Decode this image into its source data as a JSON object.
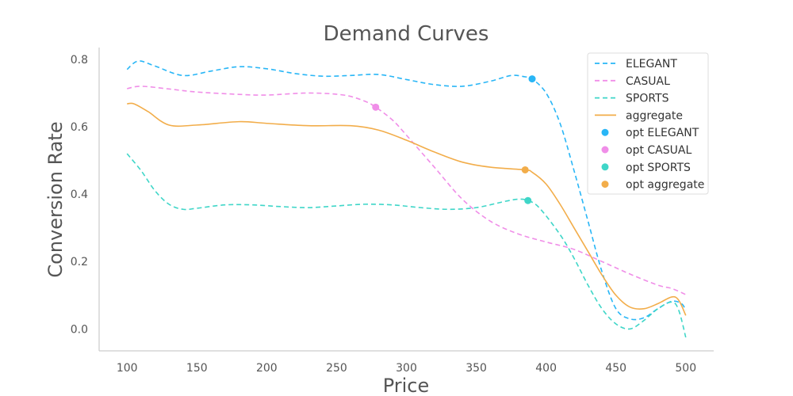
{
  "chart_data": {
    "type": "line",
    "title": "Demand Curves",
    "xlabel": "Price",
    "ylabel": "Conversion Rate",
    "xlim": [
      80,
      520
    ],
    "ylim": [
      -0.065,
      0.835
    ],
    "xticks": [
      100,
      150,
      200,
      250,
      300,
      350,
      400,
      450,
      500
    ],
    "yticks": [
      0.0,
      0.2,
      0.4,
      0.6,
      0.8
    ],
    "ytick_labels": [
      "0.0",
      "0.2",
      "0.4",
      "0.6",
      "0.8"
    ],
    "grid": false,
    "legend_position": "top-right",
    "series": [
      {
        "name": "ELEGANT",
        "color": "#29b6f6",
        "dash": true,
        "x": [
          100,
          108,
          120,
          140,
          160,
          180,
          200,
          220,
          240,
          260,
          280,
          300,
          320,
          340,
          360,
          375,
          385,
          390,
          400,
          410,
          420,
          430,
          440,
          450,
          460,
          470,
          480,
          490,
          497,
          500
        ],
        "y": [
          0.77,
          0.795,
          0.78,
          0.752,
          0.765,
          0.778,
          0.772,
          0.758,
          0.75,
          0.752,
          0.755,
          0.74,
          0.725,
          0.72,
          0.735,
          0.752,
          0.748,
          0.742,
          0.7,
          0.61,
          0.47,
          0.32,
          0.17,
          0.06,
          0.03,
          0.033,
          0.06,
          0.082,
          0.075,
          0.055
        ]
      },
      {
        "name": "CASUAL",
        "color": "#f08ee8",
        "dash": true,
        "x": [
          100,
          110,
          130,
          150,
          180,
          200,
          230,
          255,
          270,
          278,
          290,
          300,
          320,
          340,
          360,
          380,
          400,
          420,
          440,
          460,
          480,
          490,
          500
        ],
        "y": [
          0.713,
          0.72,
          0.712,
          0.703,
          0.696,
          0.694,
          0.7,
          0.694,
          0.676,
          0.658,
          0.62,
          0.575,
          0.48,
          0.385,
          0.32,
          0.282,
          0.258,
          0.236,
          0.2,
          0.163,
          0.13,
          0.12,
          0.102
        ]
      },
      {
        "name": "SPORTS",
        "color": "#3fd6c8",
        "dash": true,
        "x": [
          100,
          110,
          120,
          130,
          140,
          150,
          170,
          190,
          210,
          230,
          250,
          270,
          290,
          310,
          330,
          350,
          370,
          380,
          387,
          395,
          410,
          420,
          430,
          440,
          450,
          460,
          470,
          480,
          490,
          495,
          500
        ],
        "y": [
          0.52,
          0.47,
          0.41,
          0.37,
          0.355,
          0.358,
          0.368,
          0.368,
          0.363,
          0.36,
          0.365,
          0.37,
          0.368,
          0.36,
          0.355,
          0.36,
          0.378,
          0.385,
          0.381,
          0.36,
          0.28,
          0.21,
          0.13,
          0.06,
          0.015,
          0.0,
          0.025,
          0.06,
          0.08,
          0.055,
          -0.025
        ]
      },
      {
        "name": "aggregate",
        "color": "#f2ad4a",
        "dash": false,
        "x": [
          100,
          105,
          115,
          130,
          150,
          180,
          200,
          230,
          260,
          280,
          300,
          320,
          340,
          360,
          385,
          390,
          400,
          410,
          420,
          430,
          440,
          450,
          460,
          470,
          480,
          490,
          495,
          500
        ],
        "y": [
          0.668,
          0.668,
          0.645,
          0.605,
          0.605,
          0.615,
          0.61,
          0.603,
          0.603,
          0.59,
          0.56,
          0.525,
          0.495,
          0.48,
          0.472,
          0.465,
          0.43,
          0.37,
          0.3,
          0.23,
          0.16,
          0.1,
          0.065,
          0.06,
          0.075,
          0.095,
          0.085,
          0.04
        ]
      }
    ],
    "optima": [
      {
        "name": "opt ELEGANT",
        "color": "#29b6f6",
        "x": 390,
        "y": 0.742
      },
      {
        "name": "opt CASUAL",
        "color": "#f08ee8",
        "x": 278,
        "y": 0.658
      },
      {
        "name": "opt SPORTS",
        "color": "#3fd6c8",
        "x": 387,
        "y": 0.381
      },
      {
        "name": "opt aggregate",
        "color": "#f2ad4a",
        "x": 385,
        "y": 0.472
      }
    ]
  }
}
